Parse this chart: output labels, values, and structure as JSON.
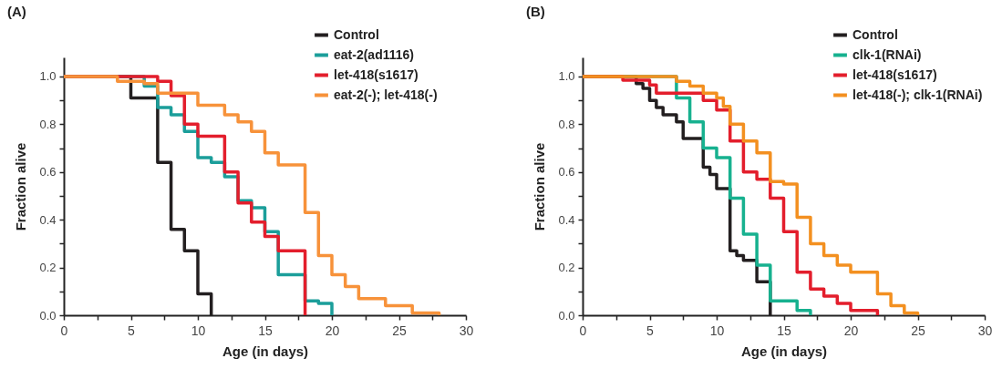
{
  "chart_data": [
    {
      "type": "step",
      "title": "(A)",
      "xlabel": "Age (in days)",
      "ylabel": "Fraction alive",
      "xlim": [
        0,
        30
      ],
      "ylim": [
        0,
        1.08
      ],
      "xticks": [
        0,
        {
          "value": 2.5,
          "label": null
        },
        5,
        {
          "value": 7.5,
          "label": null
        },
        10,
        {
          "value": 12.5,
          "label": null
        },
        15,
        {
          "value": 17.5,
          "label": null
        },
        20,
        {
          "value": 22.5,
          "label": null
        },
        25,
        {
          "value": 27.5,
          "label": null
        },
        30
      ],
      "yticks": [
        {
          "value": 0,
          "label": "0.0"
        },
        {
          "value": 0.1,
          "label": null
        },
        0.2,
        {
          "value": 0.3,
          "label": null
        },
        0.4,
        {
          "value": 0.5,
          "label": null
        },
        0.6,
        {
          "value": 0.7,
          "label": null
        },
        0.8,
        {
          "value": 0.9,
          "label": null
        },
        {
          "value": 1,
          "label": "1.0"
        }
      ],
      "grid": false,
      "legend": "top right",
      "series": [
        {
          "name": "Control",
          "color": "#231f20",
          "x": [
            0,
            5,
            7,
            8,
            9,
            10,
            11
          ],
          "values": [
            1,
            0.91,
            0.64,
            0.36,
            0.27,
            0.09,
            0
          ]
        },
        {
          "name": "eat-2(ad1116)",
          "color": "#1b9e9a",
          "x": [
            0,
            6,
            7,
            8,
            9,
            10,
            11,
            12,
            13,
            14,
            15,
            16,
            18,
            19,
            20
          ],
          "values": [
            1,
            0.96,
            0.87,
            0.84,
            0.77,
            0.66,
            0.64,
            0.58,
            0.48,
            0.45,
            0.35,
            0.17,
            0.06,
            0.05,
            0
          ]
        },
        {
          "name": "let-418(s1617)",
          "color": "#e31e2c",
          "x": [
            0,
            7,
            8,
            9,
            10,
            12,
            13,
            14,
            15,
            16,
            18
          ],
          "values": [
            1,
            0.98,
            0.92,
            0.8,
            0.75,
            0.6,
            0.47,
            0.39,
            0.33,
            0.27,
            0
          ]
        },
        {
          "name": "eat-2(-); let-418(-)",
          "color": "#f7923a",
          "x": [
            0,
            4,
            6,
            7,
            10,
            12,
            13,
            14,
            15,
            16,
            18,
            19,
            20,
            21,
            22,
            24,
            26,
            28
          ],
          "values": [
            1,
            0.98,
            0.97,
            0.93,
            0.88,
            0.84,
            0.81,
            0.77,
            0.68,
            0.63,
            0.43,
            0.25,
            0.17,
            0.12,
            0.07,
            0.04,
            0.01,
            0
          ]
        }
      ]
    },
    {
      "type": "step",
      "title": "(B)",
      "xlabel": "Age (in days)",
      "ylabel": "Fraction alive",
      "xlim": [
        0,
        30
      ],
      "ylim": [
        0,
        1.08
      ],
      "xticks": [
        0,
        {
          "value": 2.5,
          "label": null
        },
        5,
        {
          "value": 7.5,
          "label": null
        },
        10,
        {
          "value": 12.5,
          "label": null
        },
        15,
        {
          "value": 17.5,
          "label": null
        },
        20,
        {
          "value": 22.5,
          "label": null
        },
        25,
        {
          "value": 27.5,
          "label": null
        },
        30
      ],
      "yticks": [
        {
          "value": 0,
          "label": "0.0"
        },
        {
          "value": 0.1,
          "label": null
        },
        0.2,
        {
          "value": 0.3,
          "label": null
        },
        0.4,
        {
          "value": 0.5,
          "label": null
        },
        0.6,
        {
          "value": 0.7,
          "label": null
        },
        0.8,
        {
          "value": 0.9,
          "label": null
        },
        {
          "value": 1,
          "label": "1.0"
        }
      ],
      "grid": false,
      "legend": "top right",
      "series": [
        {
          "name": "Control",
          "color": "#231f20",
          "x": [
            0,
            4,
            4.5,
            5,
            5.5,
            6,
            7,
            7.5,
            9,
            9.5,
            10,
            11,
            11.5,
            12,
            13,
            14
          ],
          "values": [
            1,
            0.97,
            0.95,
            0.9,
            0.87,
            0.84,
            0.81,
            0.74,
            0.62,
            0.59,
            0.53,
            0.27,
            0.25,
            0.23,
            0.14,
            0
          ]
        },
        {
          "name": "clk-1(RNAi)",
          "color": "#17b18f",
          "x": [
            0,
            7,
            8,
            9,
            10,
            11,
            12,
            13,
            14,
            16,
            17
          ],
          "values": [
            1,
            0.91,
            0.81,
            0.7,
            0.66,
            0.49,
            0.34,
            0.21,
            0.06,
            0.02,
            0
          ]
        },
        {
          "name": "let-418(s1617)",
          "color": "#e31e2c",
          "x": [
            0,
            3,
            5,
            5.5,
            9,
            10,
            11,
            12,
            13,
            14,
            15,
            16,
            17,
            18,
            19,
            20,
            22
          ],
          "values": [
            1,
            0.985,
            0.965,
            0.93,
            0.9,
            0.86,
            0.73,
            0.6,
            0.57,
            0.49,
            0.35,
            0.18,
            0.11,
            0.08,
            0.05,
            0.02,
            0
          ]
        },
        {
          "name": "let-418(-); clk-1(RNAi)",
          "color": "#f39020",
          "x": [
            0,
            7,
            8,
            9,
            10,
            10.5,
            11,
            12,
            13,
            14,
            15,
            16,
            17,
            18,
            19,
            20,
            22,
            23,
            24,
            25
          ],
          "values": [
            1,
            0.98,
            0.96,
            0.93,
            0.91,
            0.875,
            0.8,
            0.73,
            0.68,
            0.56,
            0.55,
            0.41,
            0.3,
            0.25,
            0.21,
            0.18,
            0.09,
            0.04,
            0.01,
            0
          ]
        }
      ]
    }
  ]
}
